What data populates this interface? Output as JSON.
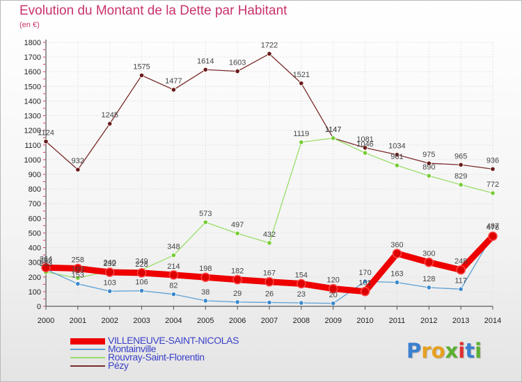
{
  "header": {
    "title": "Evolution du Montant de la Dette par Habitant",
    "unit": "(en €)"
  },
  "brand": {
    "text": "Proxiti",
    "letters": [
      "P",
      "r",
      "o",
      "x",
      "i",
      "t",
      "i"
    ],
    "colors": [
      "#3a7fd0",
      "#e8a020",
      "#e8a020",
      "#5ab030",
      "#e03030",
      "#3a7fd0",
      "#5ab030"
    ]
  },
  "chart_data": {
    "type": "line",
    "title": "Evolution du Montant de la Dette par Habitant",
    "ylabel": "(en €)",
    "xlabel": "",
    "ylim": [
      0,
      1800
    ],
    "y_ticks": [
      0,
      100,
      200,
      300,
      400,
      500,
      600,
      700,
      800,
      900,
      1000,
      1100,
      1200,
      1300,
      1400,
      1500,
      1600,
      1700,
      1800
    ],
    "categories": [
      "2000",
      "2001",
      "2002",
      "2003",
      "2004",
      "2005",
      "2006",
      "2007",
      "2008",
      "2009",
      "2010",
      "2011",
      "2012",
      "2013",
      "2014"
    ],
    "grid": true,
    "legend_placement": "bottom-left",
    "series": [
      {
        "name": "VILLENEUVE-SAINT-NICOLAS",
        "color": "#ee0000",
        "point_color": "#dd0000",
        "width": "thick",
        "values": [
          264,
          258,
          232,
          228,
          214,
          198,
          182,
          167,
          154,
          120,
          101,
          360,
          300,
          248,
          478
        ]
      },
      {
        "name": "Montainville",
        "color": "#5a9fd4",
        "point_color": "#3a88cc",
        "width": "thin",
        "values": [
          252,
          153,
          103,
          106,
          82,
          38,
          29,
          26,
          23,
          20,
          170,
          163,
          128,
          117,
          487
        ]
      },
      {
        "name": "Rouvray-Saint-Florentin",
        "color": "#99dd66",
        "point_color": "#77cc33",
        "width": "thin",
        "values": [
          233,
          193,
          240,
          249,
          348,
          573,
          497,
          432,
          1119,
          1147,
          1046,
          961,
          890,
          829,
          772
        ]
      },
      {
        "name": "Pézy",
        "color": "#7a2a2a",
        "point_color": "#6a1a1a",
        "width": "thin",
        "values": [
          1124,
          932,
          1245,
          1575,
          1477,
          1614,
          1603,
          1722,
          1521,
          1147,
          1081,
          1034,
          975,
          965,
          936
        ]
      }
    ],
    "draw_order": [
      3,
      2,
      1,
      0
    ]
  }
}
